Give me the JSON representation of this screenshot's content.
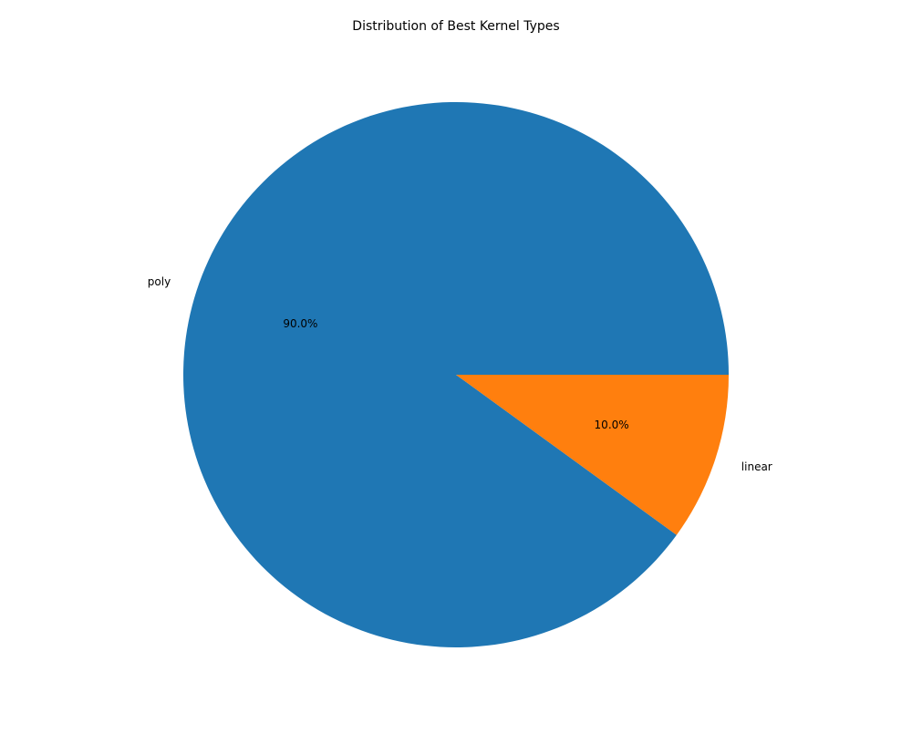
{
  "chart_data": {
    "type": "pie",
    "title": "Distribution of Best Kernel Types",
    "slices": [
      {
        "label": "poly",
        "value": 90.0,
        "percent_label": "90.0%",
        "color": "#1f77b4"
      },
      {
        "label": "linear",
        "value": 10.0,
        "percent_label": "10.0%",
        "color": "#ff7f0e"
      }
    ],
    "start_angle_deg": 0,
    "direction": "counterclockwise"
  }
}
